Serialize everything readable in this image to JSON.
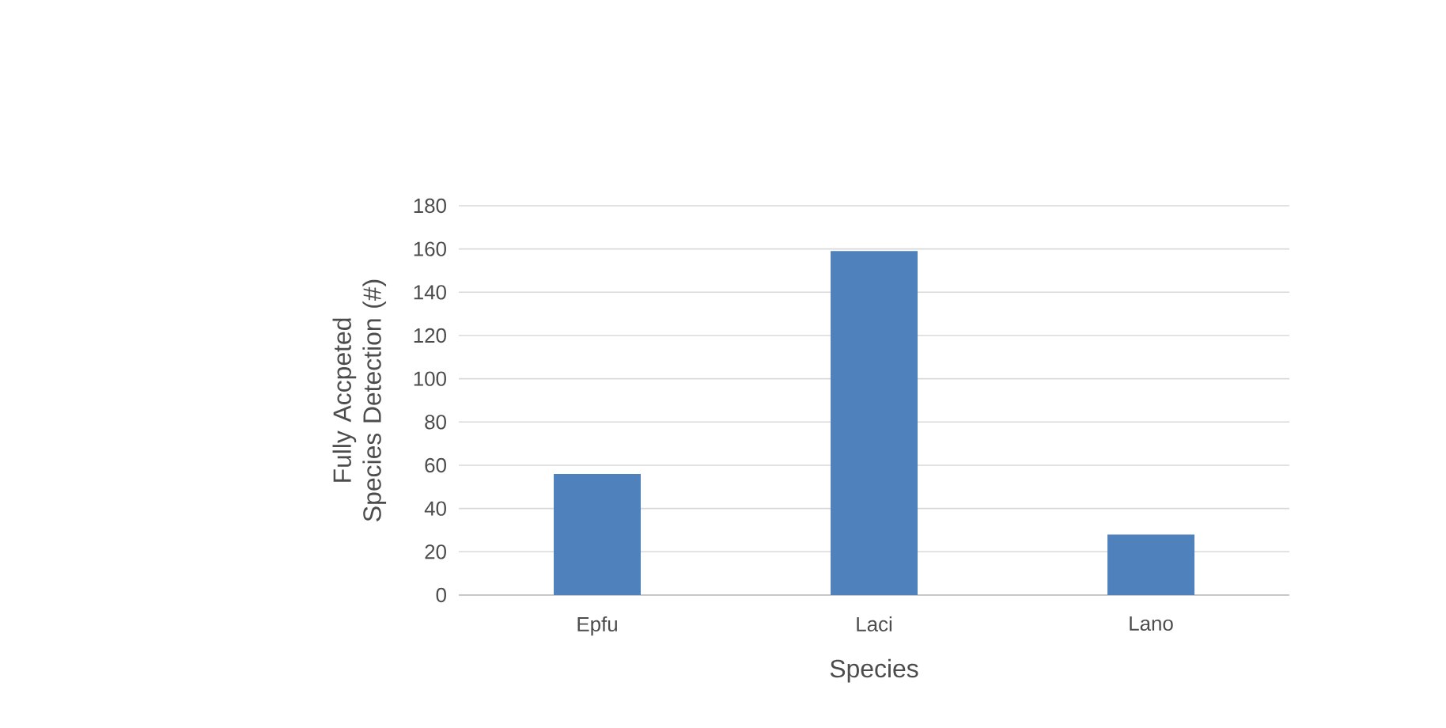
{
  "chart_data": {
    "type": "bar",
    "xlabel": "Species",
    "ylabel": "Fully Accpeted Species Detection (#)",
    "categories": [
      "Epfu",
      "Laci",
      "Lano"
    ],
    "values": [
      56,
      159,
      28
    ],
    "color": "#4f81bd",
    "ylim": [
      0,
      180
    ],
    "yticks": [
      0,
      20,
      40,
      60,
      80,
      100,
      120,
      140,
      160,
      180
    ],
    "grid": "y"
  }
}
